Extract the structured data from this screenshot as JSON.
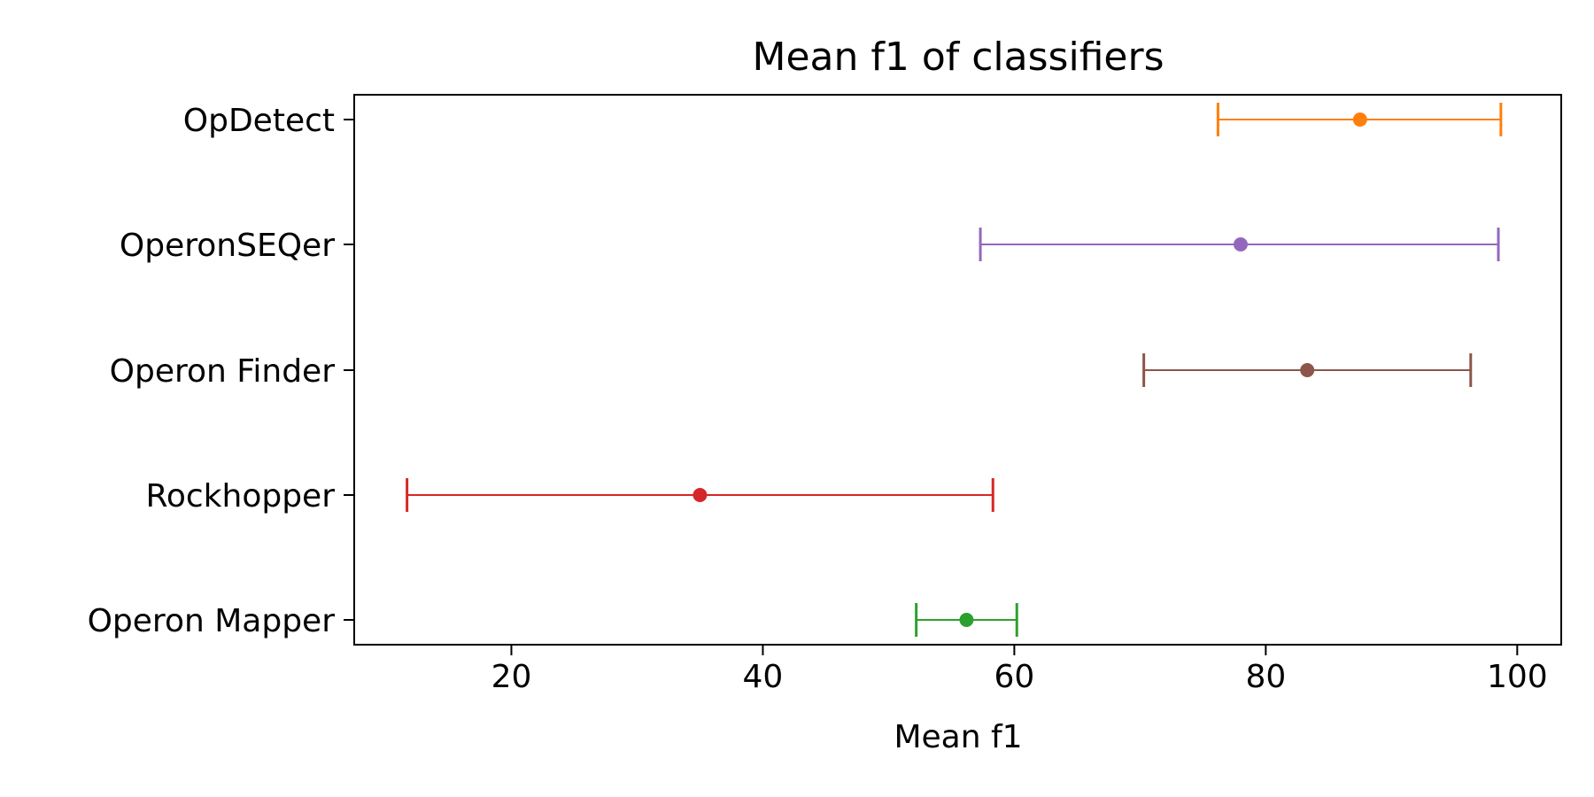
{
  "chart_data": {
    "type": "errorbar",
    "orientation": "horizontal",
    "title": "Mean f1 of classifiers",
    "xlabel": "Mean f1",
    "ylabel": "",
    "xlim": [
      7.5,
      103.5
    ],
    "xticks": [
      20,
      40,
      60,
      80,
      100
    ],
    "grid": false,
    "categories": [
      "OpDetect",
      "OperonSEQer",
      "Operon Finder",
      "Rockhopper",
      "Operon Mapper"
    ],
    "series": [
      {
        "category": "OpDetect",
        "mean": 87.5,
        "lower": 76.2,
        "upper": 98.7,
        "color": "#ff7f0e"
      },
      {
        "category": "OperonSEQer",
        "mean": 78.0,
        "lower": 57.3,
        "upper": 98.5,
        "color": "#9467bd"
      },
      {
        "category": "Operon Finder",
        "mean": 83.3,
        "lower": 70.3,
        "upper": 96.3,
        "color": "#8c564b"
      },
      {
        "category": "Rockhopper",
        "mean": 35.0,
        "lower": 11.7,
        "upper": 58.3,
        "color": "#d62728"
      },
      {
        "category": "Operon Mapper",
        "mean": 56.2,
        "lower": 52.2,
        "upper": 60.2,
        "color": "#2ca02c"
      }
    ]
  }
}
